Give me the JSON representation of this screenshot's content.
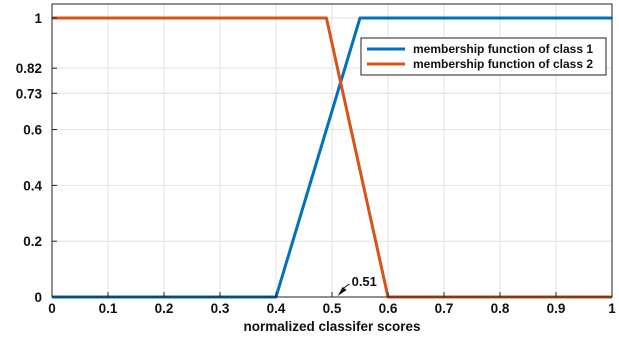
{
  "chart_data": {
    "type": "line",
    "xlabel": "normalized classifer scores",
    "ylabel": "",
    "xlim": [
      0,
      1
    ],
    "ylim": [
      0,
      1.05
    ],
    "x_ticks": [
      0,
      0.1,
      0.2,
      0.3,
      0.4,
      0.5,
      0.6,
      0.7,
      0.8,
      0.9,
      1
    ],
    "x_tick_labels": [
      "0",
      "0.1",
      "0.2",
      "0.3",
      "0.4",
      "0.5",
      "0.6",
      "0.7",
      "0.8",
      "0.9",
      "1"
    ],
    "y_ticks": [
      0,
      0.2,
      0.4,
      0.6,
      0.73,
      0.82,
      1
    ],
    "y_tick_labels": [
      "0",
      "0.2",
      "0.4",
      "0.6",
      "0.73",
      "0.82",
      "1"
    ],
    "grid": true,
    "legend_position": "top-right",
    "series": [
      {
        "name": "membership function of class 1",
        "color": "#0072bd",
        "x": [
          0,
          0.4,
          0.55,
          1
        ],
        "y": [
          0,
          0,
          1,
          1
        ]
      },
      {
        "name": "membership function of class 2",
        "color": "#d95319",
        "x": [
          0,
          0.49,
          0.6,
          1
        ],
        "y": [
          1,
          1,
          0,
          0
        ]
      }
    ],
    "annotations": [
      {
        "text": "0.51",
        "x": 0.51,
        "y": 0
      }
    ]
  }
}
